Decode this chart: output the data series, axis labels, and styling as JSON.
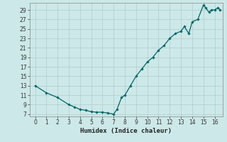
{
  "x_pts": [
    0,
    1,
    2,
    3,
    3.5,
    4,
    4.5,
    5,
    5.5,
    6,
    6.5,
    7,
    7.3,
    7.7,
    8,
    8.5,
    9,
    9.5,
    10,
    10.5,
    11,
    11.5,
    12,
    12.5,
    13,
    13.3,
    13.7,
    14,
    14.5,
    15,
    15.2,
    15.5,
    15.7,
    16,
    16.3,
    16.5
  ],
  "y_pts": [
    13,
    11.5,
    10.5,
    9,
    8.5,
    8,
    7.8,
    7.5,
    7.4,
    7.4,
    7.2,
    7.0,
    8.0,
    10.5,
    11.0,
    13.0,
    15.0,
    16.5,
    18.0,
    19.0,
    20.5,
    21.5,
    23.0,
    24.0,
    24.5,
    25.5,
    24.0,
    26.5,
    27.0,
    30.0,
    29.5,
    28.5,
    29.0,
    29.0,
    29.5,
    29.0
  ],
  "xlabel": "Humidex (Indice chaleur)",
  "xlim": [
    -0.5,
    16.7
  ],
  "ylim": [
    6.5,
    30.5
  ],
  "yticks": [
    7,
    9,
    11,
    13,
    15,
    17,
    19,
    21,
    23,
    25,
    27,
    29
  ],
  "xticks": [
    0,
    1,
    2,
    3,
    4,
    5,
    6,
    7,
    8,
    9,
    10,
    11,
    12,
    13,
    14,
    15,
    16
  ],
  "line_color": "#006666",
  "bg_color": "#cce8e8",
  "grid_major_color": "#b0cccc",
  "grid_minor_color": "#c4dddd",
  "marker": "D",
  "marker_size": 1.8,
  "linewidth": 0.9
}
